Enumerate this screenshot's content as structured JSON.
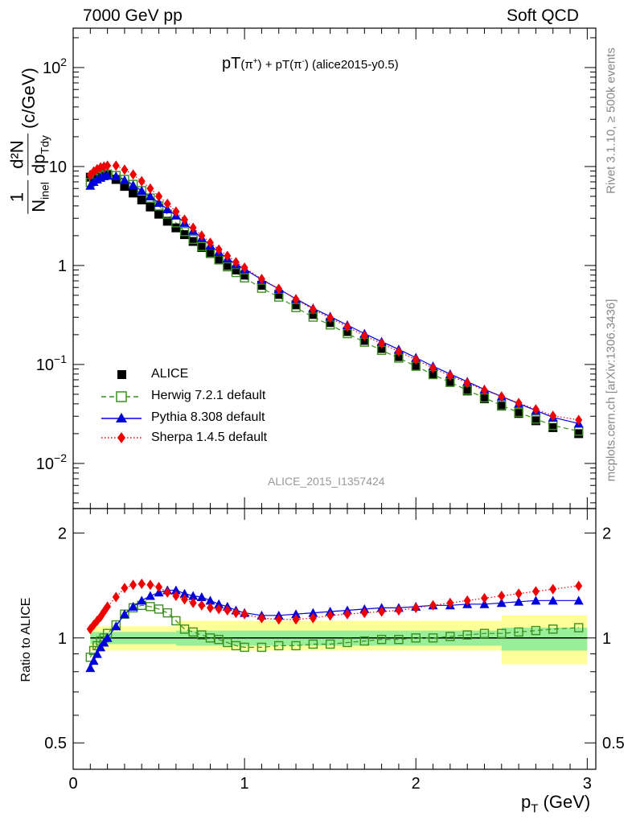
{
  "header": {
    "left": "7000 GeV pp",
    "right": "Soft QCD"
  },
  "chart_data": [
    {
      "type": "scatter",
      "title_main": "pT",
      "title_pi1": "(π",
      "title_sup1": "+",
      "title_mid": ") + pT",
      "title_pi2": "(π",
      "title_sup2": "-",
      "title_tail": ") (alice2015-y0.5)",
      "ylabel": {
        "one": "1",
        "n": "N",
        "inel": "inel",
        "d2n": "d²N",
        "dp": "dp",
        "tdy": "Tdy",
        "unit": "(c/GeV)"
      },
      "yscale": "log",
      "ylim": [
        0.0035,
        250
      ],
      "xlim": [
        0,
        3.05
      ],
      "y_ticks": [
        {
          "v": 100,
          "base": "10",
          "exp": "2"
        },
        {
          "v": 10,
          "base": "10",
          "exp": ""
        },
        {
          "v": 1,
          "base": "1",
          "exp": ""
        },
        {
          "v": 0.1,
          "base": "10",
          "exp": "−1"
        },
        {
          "v": 0.01,
          "base": "10",
          "exp": "−2"
        }
      ],
      "x": [
        0.1,
        0.12,
        0.14,
        0.16,
        0.18,
        0.2,
        0.25,
        0.3,
        0.35,
        0.4,
        0.45,
        0.5,
        0.55,
        0.6,
        0.65,
        0.7,
        0.75,
        0.8,
        0.85,
        0.9,
        0.95,
        1.0,
        1.1,
        1.2,
        1.3,
        1.4,
        1.5,
        1.6,
        1.7,
        1.8,
        1.9,
        2.0,
        2.1,
        2.2,
        2.3,
        2.4,
        2.5,
        2.6,
        2.7,
        2.8,
        2.95
      ],
      "series": [
        {
          "name": "ALICE",
          "marker": "square",
          "color": "#000000",
          "line": "none",
          "values": [
            7.8,
            8.2,
            8.3,
            8.3,
            8.3,
            8.2,
            7.4,
            6.3,
            5.4,
            4.6,
            3.9,
            3.3,
            2.8,
            2.4,
            2.05,
            1.75,
            1.52,
            1.32,
            1.15,
            1.0,
            0.9,
            0.8,
            0.63,
            0.51,
            0.4,
            0.32,
            0.265,
            0.215,
            0.175,
            0.145,
            0.12,
            0.098,
            0.08,
            0.066,
            0.054,
            0.045,
            0.038,
            0.032,
            0.027,
            0.023,
            0.02
          ]
        },
        {
          "name": "Herwig 7.2.1 default",
          "marker": "open-square",
          "color": "#3a8f1f",
          "line": "dashed",
          "values": [
            6.9,
            7.6,
            7.9,
            8.1,
            8.3,
            8.4,
            8.1,
            7.4,
            6.6,
            5.7,
            4.8,
            4.0,
            3.3,
            2.7,
            2.2,
            1.84,
            1.56,
            1.33,
            1.14,
            0.97,
            0.85,
            0.75,
            0.59,
            0.48,
            0.376,
            0.301,
            0.251,
            0.205,
            0.168,
            0.139,
            0.116,
            0.096,
            0.079,
            0.066,
            0.055,
            0.046,
            0.0385,
            0.0328,
            0.0281,
            0.0242,
            0.0212
          ]
        },
        {
          "name": "Pythia 8.308 default",
          "marker": "triangle",
          "color": "#0000dd",
          "line": "solid",
          "values": [
            6.4,
            7.0,
            7.4,
            7.7,
            8.0,
            8.1,
            8.0,
            7.3,
            6.5,
            5.7,
            5.0,
            4.3,
            3.7,
            3.2,
            2.7,
            2.25,
            1.9,
            1.6,
            1.37,
            1.18,
            1.03,
            0.92,
            0.72,
            0.58,
            0.46,
            0.37,
            0.305,
            0.25,
            0.205,
            0.17,
            0.142,
            0.117,
            0.096,
            0.08,
            0.067,
            0.056,
            0.0475,
            0.0402,
            0.0343,
            0.0292,
            0.0253
          ]
        },
        {
          "name": "Sherpa 1.4.5 default",
          "marker": "diamond",
          "color": "#ee0000",
          "line": "dotted",
          "values": [
            8.2,
            8.9,
            9.4,
            9.8,
            10.0,
            10.2,
            10.2,
            9.3,
            8.3,
            7.1,
            6.0,
            5.0,
            4.2,
            3.5,
            2.9,
            2.4,
            2.0,
            1.7,
            1.45,
            1.25,
            1.08,
            0.95,
            0.73,
            0.58,
            0.455,
            0.36,
            0.295,
            0.24,
            0.195,
            0.163,
            0.135,
            0.112,
            0.092,
            0.077,
            0.065,
            0.055,
            0.0475,
            0.0408,
            0.0352,
            0.0303,
            0.0275
          ]
        }
      ],
      "legend_position": "bottom-left",
      "watermark": "ALICE_2015_I1357424"
    },
    {
      "type": "line",
      "ylabel": "Ratio to ALICE",
      "xlabel_p": "p",
      "xlabel_sub": "T",
      "xlabel_unit": "(GeV)",
      "ylim": [
        0.42,
        2.35
      ],
      "yscale": "log",
      "y_ticks": [
        {
          "v": 2,
          "label": "2"
        },
        {
          "v": 1,
          "label": "1"
        },
        {
          "v": 0.5,
          "label": "0.5"
        }
      ],
      "x_ticks": [
        {
          "v": 0,
          "label": "0"
        },
        {
          "v": 1,
          "label": "1"
        },
        {
          "v": 2,
          "label": "2"
        },
        {
          "v": 3,
          "label": "3"
        }
      ],
      "bands": [
        {
          "x0": 0.1,
          "x1": 0.6,
          "stat": [
            0.96,
            1.04
          ],
          "syst": [
            0.92,
            1.08
          ]
        },
        {
          "x0": 0.6,
          "x1": 2.5,
          "stat": [
            0.95,
            1.05
          ],
          "syst": [
            0.92,
            1.12
          ]
        },
        {
          "x0": 2.5,
          "x1": 3.0,
          "stat": [
            0.92,
            1.07
          ],
          "syst": [
            0.84,
            1.16
          ]
        }
      ],
      "series": [
        {
          "name": "Herwig 7.2.1 default",
          "values": [
            0.88,
            0.92,
            0.95,
            0.98,
            1.0,
            1.03,
            1.09,
            1.17,
            1.22,
            1.24,
            1.23,
            1.21,
            1.18,
            1.12,
            1.06,
            1.04,
            1.02,
            1.0,
            0.99,
            0.97,
            0.95,
            0.94,
            0.94,
            0.95,
            0.95,
            0.96,
            0.96,
            0.97,
            0.98,
            0.99,
            0.99,
            1.0,
            1.0,
            1.01,
            1.02,
            1.03,
            1.03,
            1.04,
            1.05,
            1.06,
            1.07
          ]
        },
        {
          "name": "Pythia 8.308 default",
          "values": [
            0.82,
            0.86,
            0.9,
            0.94,
            0.97,
            1.0,
            1.08,
            1.17,
            1.23,
            1.28,
            1.32,
            1.35,
            1.37,
            1.37,
            1.34,
            1.32,
            1.31,
            1.28,
            1.25,
            1.23,
            1.2,
            1.18,
            1.16,
            1.16,
            1.17,
            1.18,
            1.19,
            1.2,
            1.21,
            1.22,
            1.22,
            1.23,
            1.24,
            1.24,
            1.25,
            1.25,
            1.26,
            1.27,
            1.28,
            1.28,
            1.28
          ]
        },
        {
          "name": "Sherpa 1.4.5 default",
          "values": [
            1.06,
            1.09,
            1.12,
            1.15,
            1.19,
            1.23,
            1.31,
            1.39,
            1.42,
            1.43,
            1.42,
            1.4,
            1.35,
            1.32,
            1.29,
            1.26,
            1.24,
            1.22,
            1.21,
            1.2,
            1.18,
            1.17,
            1.14,
            1.13,
            1.13,
            1.14,
            1.16,
            1.17,
            1.18,
            1.19,
            1.2,
            1.22,
            1.24,
            1.26,
            1.28,
            1.3,
            1.32,
            1.34,
            1.36,
            1.38,
            1.41
          ]
        }
      ]
    }
  ],
  "side": {
    "rivet": "Rivet 3.1.10, ≥ 500k events",
    "mcplots": "mcplots.cern.ch [arXiv:1306.3436]"
  }
}
